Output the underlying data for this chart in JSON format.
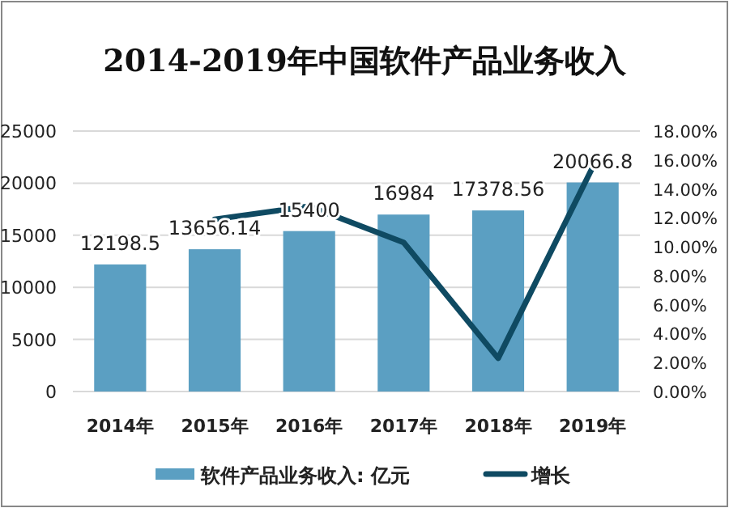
{
  "chart_data": {
    "type": "bar",
    "title": "2014-2019年中国软件产品业务收入",
    "categories": [
      "2014年",
      "2015年",
      "2016年",
      "2017年",
      "2018年",
      "2019年"
    ],
    "series": [
      {
        "name": "软件产品业务收入: 亿元",
        "color": "#5b9fc2",
        "values": [
          12198.5,
          13656.14,
          15400,
          16984,
          17378.56,
          20066.8
        ],
        "value_labels": [
          "12198.5",
          "13656.14",
          "15400",
          "16984",
          "17378.56",
          "20066.8"
        ]
      },
      {
        "name": "增长",
        "type": "line",
        "axis": "y2",
        "color": "#0f4a62",
        "values": [
          null,
          11.9,
          12.8,
          10.3,
          2.3,
          15.5
        ]
      }
    ],
    "ylim": [
      0,
      25000
    ],
    "yticks": [
      0,
      5000,
      10000,
      15000,
      20000,
      25000
    ],
    "y2lim": [
      0,
      18
    ],
    "y2ticks": [
      {
        "value": 0,
        "label": "0.00%"
      },
      {
        "value": 2,
        "label": "2.00%"
      },
      {
        "value": 4,
        "label": "4.00%"
      },
      {
        "value": 6,
        "label": "6.00%"
      },
      {
        "value": 8,
        "label": "8.00%"
      },
      {
        "value": 10,
        "label": "10.00%"
      },
      {
        "value": 12,
        "label": "12.00%"
      },
      {
        "value": 14,
        "label": "14.00%"
      },
      {
        "value": 16,
        "label": "16.00%"
      },
      {
        "value": 18,
        "label": "18.00%"
      }
    ],
    "grid": "y",
    "legend": "bottom",
    "marker": "none",
    "line_style": "solid"
  }
}
